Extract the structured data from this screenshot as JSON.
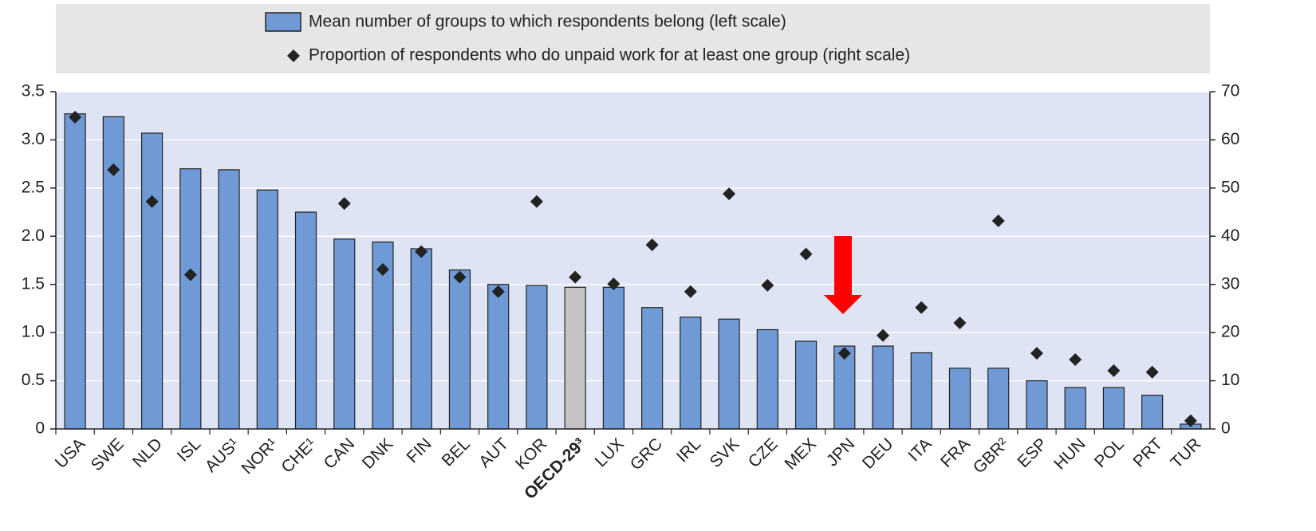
{
  "chart_data": {
    "type": "bar_scatter",
    "categories": [
      "USA",
      "SWE",
      "NLD",
      "ISL",
      "AUS¹",
      "NOR¹",
      "CHE¹",
      "CAN",
      "DNK",
      "FIN",
      "BEL",
      "AUT",
      "KOR",
      "OECD-29³",
      "LUX",
      "GRC",
      "IRL",
      "SVK",
      "CZE",
      "MEX",
      "JPN",
      "DEU",
      "ITA",
      "FRA",
      "GBR²",
      "ESP",
      "HUN",
      "POL",
      "PRT",
      "TUR"
    ],
    "series": [
      {
        "name": "Mean number of groups to which respondents belong (left scale)",
        "type": "bar",
        "axis": "y",
        "color": "#6f9ad6",
        "colors": [
          "#6f9ad6",
          "#6f9ad6",
          "#6f9ad6",
          "#6f9ad6",
          "#6f9ad6",
          "#6f9ad6",
          "#6f9ad6",
          "#6f9ad6",
          "#6f9ad6",
          "#6f9ad6",
          "#6f9ad6",
          "#6f9ad6",
          "#6f9ad6",
          "#c4c4c4",
          "#6f9ad6",
          "#6f9ad6",
          "#6f9ad6",
          "#6f9ad6",
          "#6f9ad6",
          "#6f9ad6",
          "#6f9ad6",
          "#6f9ad6",
          "#6f9ad6",
          "#6f9ad6",
          "#6f9ad6",
          "#6f9ad6",
          "#6f9ad6",
          "#6f9ad6",
          "#6f9ad6",
          "#6f9ad6"
        ],
        "values": [
          3.27,
          3.24,
          3.07,
          2.7,
          2.69,
          2.48,
          2.25,
          1.97,
          1.94,
          1.87,
          1.65,
          1.5,
          1.49,
          1.47,
          1.47,
          1.26,
          1.16,
          1.14,
          1.03,
          0.91,
          0.86,
          0.86,
          0.79,
          0.63,
          0.63,
          0.5,
          0.43,
          0.43,
          0.35,
          0.05
        ]
      },
      {
        "name": "Proportion of respondents who do unpaid work for at least one group (right scale)",
        "type": "scatter",
        "axis": "y2",
        "color": "#222222",
        "values": [
          64.7,
          53.8,
          47.2,
          32,
          null,
          null,
          null,
          46.8,
          33.1,
          36.8,
          31.5,
          28.5,
          47.2,
          31.5,
          30.1,
          38.2,
          28.5,
          48.8,
          29.8,
          36.3,
          15.7,
          19.4,
          25.2,
          22,
          43.2,
          15.7,
          14.4,
          12.1,
          11.8,
          1.7
        ]
      }
    ],
    "highlight_category": 13,
    "ylim": [
      0,
      3.5
    ],
    "yticks": [
      0,
      0.5,
      {
        "value": 1,
        "label": "1.0"
      },
      1.5,
      {
        "value": 2,
        "label": "2.0"
      },
      2.5,
      {
        "value": 3,
        "label": "3.0"
      },
      3.5
    ],
    "y2lim": [
      0,
      70
    ],
    "y2ticks": [
      0,
      10,
      20,
      30,
      40,
      50,
      60,
      70
    ],
    "grid": true,
    "legend": "top"
  }
}
